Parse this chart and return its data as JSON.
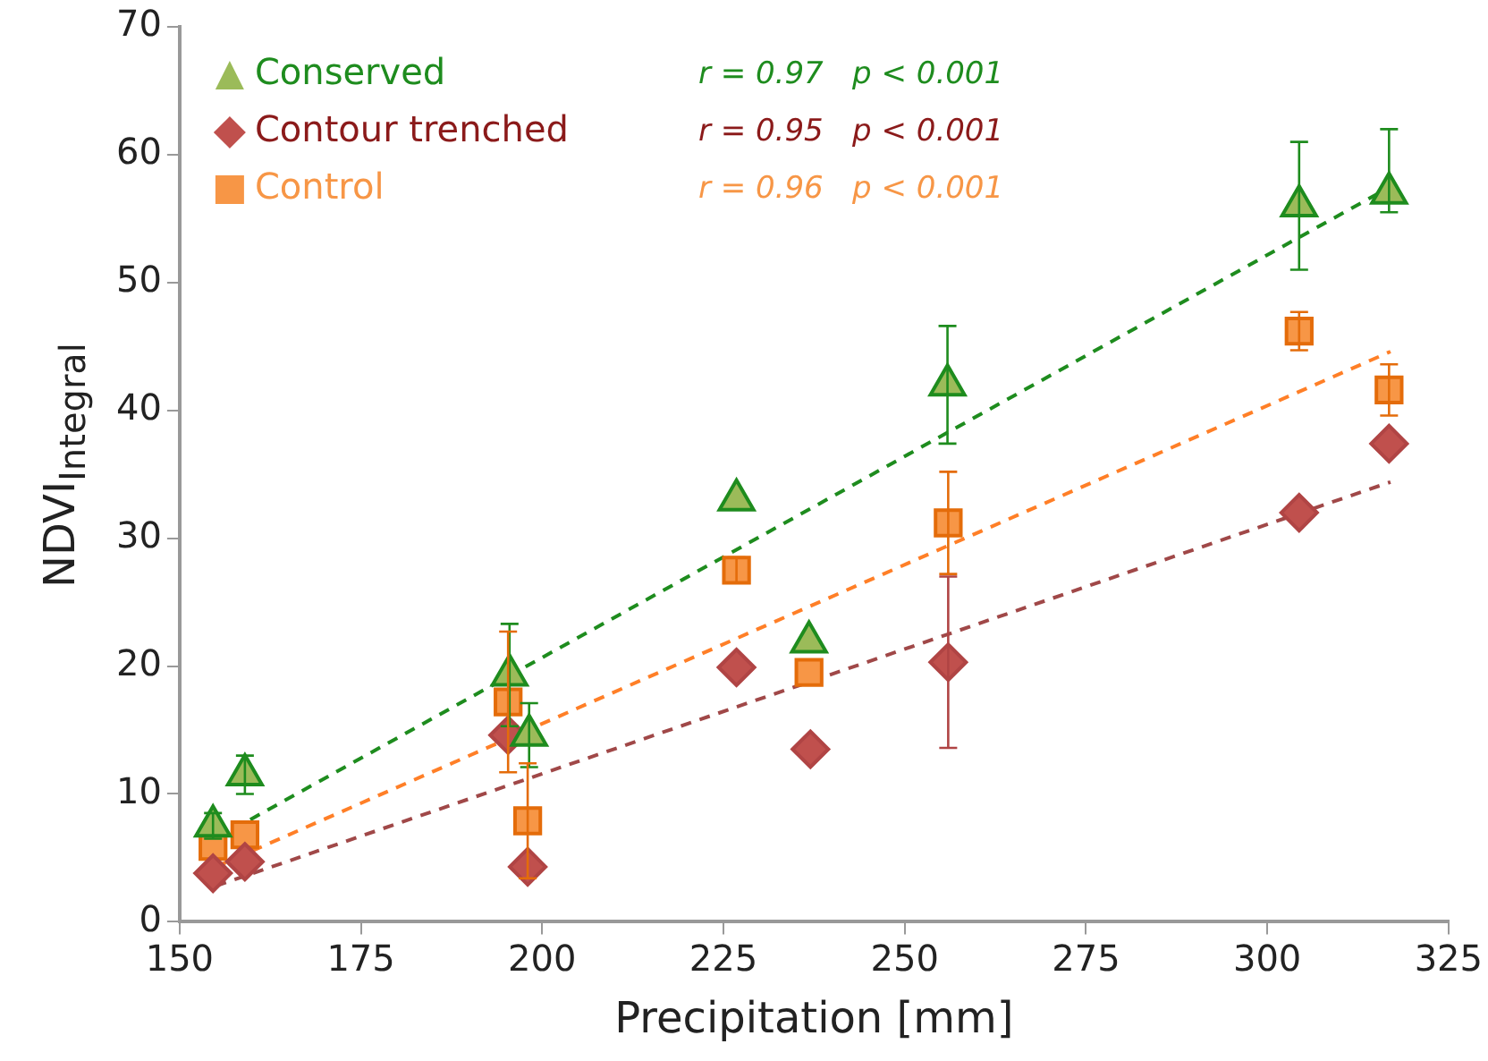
{
  "chart_data": {
    "type": "scatter",
    "xlabel": "Precipitation [mm]",
    "ylabel": "NDVI$_{Integral}$",
    "xlim": [
      150,
      325
    ],
    "xticks": [
      150,
      175,
      200,
      225,
      250,
      275,
      300,
      325
    ],
    "ylim": [
      0,
      70
    ],
    "yticks": [
      0,
      10,
      20,
      30,
      40,
      50,
      60,
      70
    ],
    "grid": false,
    "legend": "top left",
    "annotations": [
      "r = 0.97   p < 0.001",
      "r = 0.95   p < 0.001",
      "r = 0.96   p < 0.001"
    ],
    "series": [
      {
        "name": "Conserved",
        "type": "scatter",
        "marker": "triangle",
        "color": "#9bbb59",
        "x": [
          154.6,
          159,
          195.5,
          198.2,
          226.8,
          236.8,
          255.9,
          304.4,
          316.8
        ],
        "values": [
          7.5,
          11.5,
          19.3,
          14.6,
          33,
          21.9,
          42,
          56,
          57
        ],
        "errors": [
          1,
          1.5,
          4,
          2.5,
          null,
          null,
          4.6,
          5,
          [
            55.5,
            62
          ]
        ]
      },
      {
        "name": "Contour trenched",
        "type": "scatter",
        "marker": "diamond",
        "color": "#c0504d",
        "x": [
          154.6,
          159,
          195.3,
          198,
          226.8,
          237,
          256,
          304.4,
          316.8
        ],
        "values": [
          3.8,
          4.7,
          14.6,
          4.3,
          19.9,
          13.5,
          20.3,
          32,
          37.4
        ],
        "errors": [
          null,
          null,
          null,
          null,
          null,
          null,
          6.7,
          null,
          null
        ]
      },
      {
        "name": "Control",
        "type": "scatter",
        "marker": "square",
        "color": "#f79646",
        "x": [
          154.6,
          159,
          195.3,
          198,
          226.8,
          236.8,
          256,
          304.4,
          316.8
        ],
        "values": [
          5.9,
          6.8,
          17.2,
          7.9,
          27.5,
          19.5,
          31.2,
          46.2,
          41.6
        ],
        "errors": [
          null,
          null,
          5.5,
          4.5,
          1,
          null,
          4,
          1.5,
          2
        ]
      },
      {
        "type": "line",
        "marker": "none",
        "line_style": "dashed",
        "color": "#1e8c1e",
        "x": [
          155,
          317
        ],
        "values": [
          6.5,
          57.5
        ]
      },
      {
        "type": "line",
        "marker": "none",
        "line_style": "dashed",
        "color": "#a04848",
        "x": [
          155,
          317
        ],
        "values": [
          2.8,
          34.4
        ]
      },
      {
        "type": "line",
        "marker": "none",
        "line_style": "dashed",
        "color": "#ff7f27",
        "x": [
          155,
          317
        ],
        "values": [
          4.3,
          44.6
        ]
      }
    ]
  }
}
